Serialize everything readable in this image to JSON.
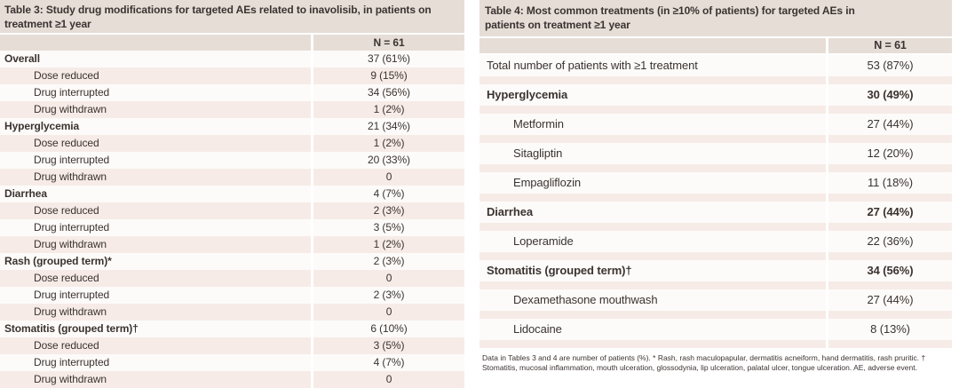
{
  "colors": {
    "beige": "#e6ddd7",
    "pink": "#f6ebe7",
    "rowwhite": "#fdfbf9",
    "ink": "#3a3330"
  },
  "table3": {
    "title": "Table 3: Study drug modifications for targeted AEs related to inavolisib, in patients on treatment ≥1 year",
    "n_label": "N = 61",
    "rows": [
      {
        "label": "Overall",
        "value": "37 (61%)",
        "b": true
      },
      {
        "label": "Dose reduced",
        "value": "9 (15%)",
        "i": true
      },
      {
        "label": "Drug interrupted",
        "value": "34 (56%)",
        "i": true
      },
      {
        "label": "Drug withdrawn",
        "value": "1 (2%)",
        "i": true
      },
      {
        "label": "Hyperglycemia",
        "value": "21 (34%)",
        "b": true
      },
      {
        "label": "Dose reduced",
        "value": "1 (2%)",
        "i": true
      },
      {
        "label": "Drug interrupted",
        "value": "20 (33%)",
        "i": true
      },
      {
        "label": "Drug withdrawn",
        "value": "0",
        "i": true
      },
      {
        "label": "Diarrhea",
        "value": "4 (7%)",
        "b": true
      },
      {
        "label": "Dose reduced",
        "value": "2 (3%)",
        "i": true
      },
      {
        "label": "Drug interrupted",
        "value": "3 (5%)",
        "i": true
      },
      {
        "label": "Drug withdrawn",
        "value": "1 (2%)",
        "i": true
      },
      {
        "label": "Rash (grouped term)*",
        "value": "2 (3%)",
        "b": true
      },
      {
        "label": "Dose reduced",
        "value": "0",
        "i": true
      },
      {
        "label": "Drug interrupted",
        "value": "2 (3%)",
        "i": true
      },
      {
        "label": "Drug withdrawn",
        "value": "0",
        "i": true
      },
      {
        "label": "Stomatitis (grouped term)†",
        "value": "6 (10%)",
        "b": true
      },
      {
        "label": "Dose reduced",
        "value": "3 (5%)",
        "i": true
      },
      {
        "label": "Drug interrupted",
        "value": "4 (7%)",
        "i": true
      },
      {
        "label": "Drug withdrawn",
        "value": "0",
        "i": true
      }
    ]
  },
  "table4": {
    "title": "Table 4: Most common treatments (in ≥10% of patients) for targeted AEs in patients on treatment ≥1 year",
    "n_label": "N = 61",
    "rows": [
      {
        "label": "Total number of patients with ≥1 treatment",
        "value": "53 (87%)"
      },
      {
        "label": "Hyperglycemia",
        "value": "30 (49%)",
        "b": true
      },
      {
        "label": "Metformin",
        "value": "27 (44%)",
        "i": true
      },
      {
        "label": "Sitagliptin",
        "value": "12 (20%)",
        "i": true
      },
      {
        "label": "Empagliflozin",
        "value": "11 (18%)",
        "i": true
      },
      {
        "label": "Diarrhea",
        "value": "27 (44%)",
        "b": true
      },
      {
        "label": "Loperamide",
        "value": "22 (36%)",
        "i": true
      },
      {
        "label": "Stomatitis (grouped term)†",
        "value": "34 (56%)",
        "b": true
      },
      {
        "label": "Dexamethasone mouthwash",
        "value": "27 (44%)",
        "i": true
      },
      {
        "label": "Lidocaine",
        "value": "8 (13%)",
        "i": true
      }
    ],
    "footnote": "Data in Tables 3 and 4 are number of patients (%). * Rash, rash maculopapular, dermatitis acneiform, hand dermatitis, rash pruritic. † Stomatitis, mucosal inflammation, mouth ulceration, glossodynia, lip ulceration, palatal ulcer, tongue ulceration. AE, adverse event."
  }
}
